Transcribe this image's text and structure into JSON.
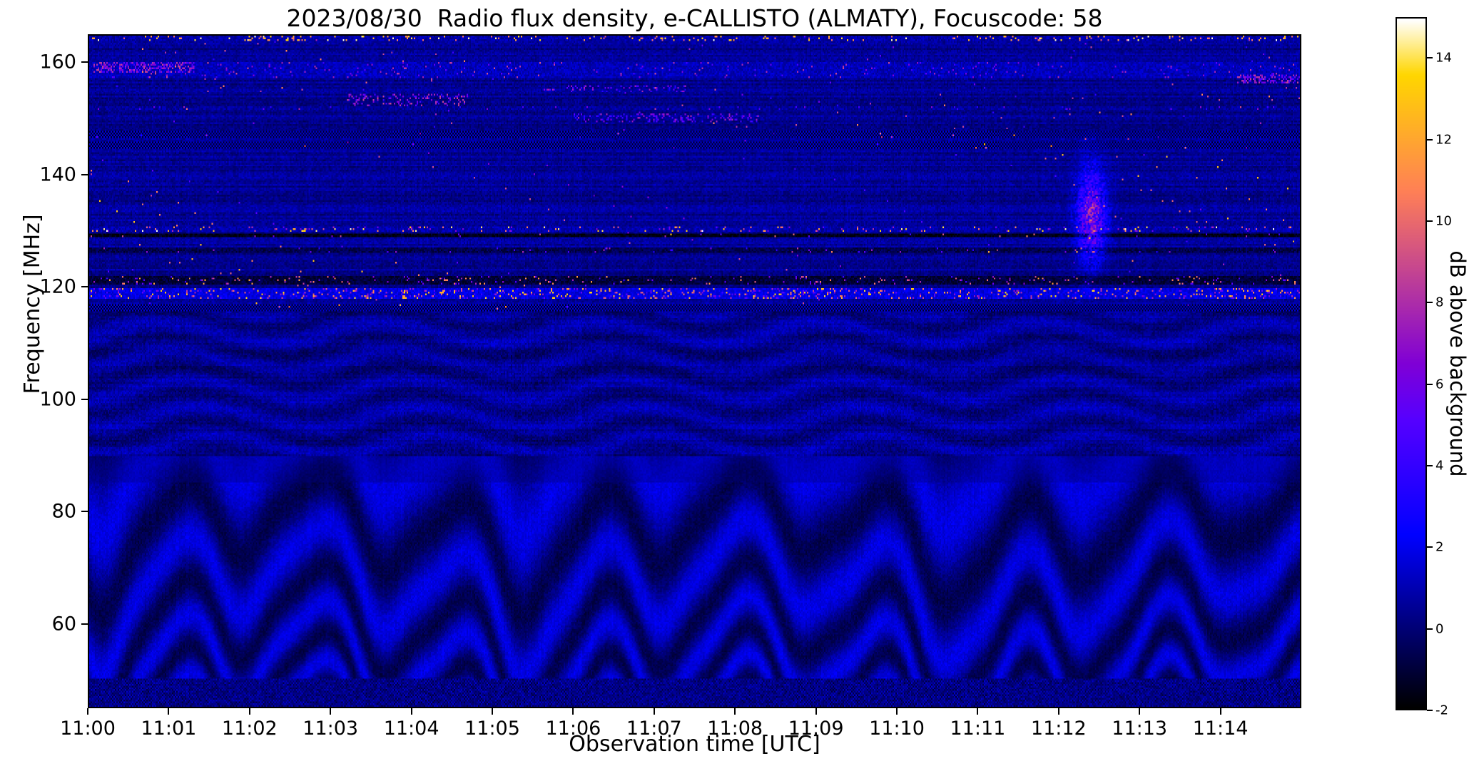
{
  "chart_data": {
    "type": "heatmap",
    "title": "2023/08/30  Radio flux density, e-CALLISTO (ALMATY), Focuscode: 58",
    "xlabel": "Observation time [UTC]",
    "ylabel": "Frequency [MHz]",
    "x_ticks": [
      "11:00",
      "11:01",
      "11:02",
      "11:03",
      "11:04",
      "11:05",
      "11:06",
      "11:07",
      "11:08",
      "11:09",
      "11:10",
      "11:11",
      "11:12",
      "11:13",
      "11:14"
    ],
    "x_span_minutes": 15,
    "y_ticks": [
      60,
      80,
      100,
      120,
      140,
      160
    ],
    "freq_range_mhz": [
      45,
      165
    ],
    "value_range_db": [
      -2,
      15
    ],
    "colorbar": {
      "label": "dB above background",
      "ticks": [
        -2,
        0,
        2,
        4,
        6,
        8,
        10,
        12,
        14
      ],
      "colormap": "gnuplot2"
    },
    "description": "Dynamic radio spectrum: dark-blue background noise; undulating ionospheric interference fringes below ~90 MHz; strong speckled RFI bands near 119 and 130 MHz; dotted calibration rows near 116 and 146 MHz; sporadic bright pink/yellow bursts in the 118-135 MHz and 148-165 MHz ranges; bright enhancement patch near 11:12.4 around 127-140 MHz.",
    "render": {
      "grid": {
        "cols": 850,
        "rows": 380,
        "seed": 77
      },
      "background": {
        "base": 0.45,
        "noise": 1.1,
        "row_gain": 0.9,
        "col_gain": 0.3
      },
      "fringe_region": {
        "f_max": 90,
        "spacing_base": 2.9,
        "spacing_slope": 0.045,
        "amplitude": 1.25
      },
      "checker_bands": [
        {
          "f": 116.4,
          "hw": 0.55
        },
        {
          "f": 145.4,
          "hw": 0.6
        },
        {
          "f": 147.3,
          "hw": 0.5
        }
      ],
      "rfi_bands": [
        {
          "f": 118.9,
          "hw": 0.9,
          "base": 1.8,
          "p": 0.13,
          "lo": 4,
          "hi": 14
        },
        {
          "f": 121.3,
          "hw": 0.8,
          "base": -1.0,
          "p": 0.05,
          "lo": 4,
          "hi": 12
        },
        {
          "f": 126.6,
          "hw": 0.5,
          "base": -0.7,
          "p": 0.02,
          "lo": 3,
          "hi": 8
        },
        {
          "f": 129.2,
          "hw": 0.35,
          "base": -1.6,
          "p": 0.01,
          "lo": 4,
          "hi": 10
        },
        {
          "f": 130.4,
          "hw": 0.6,
          "base": 0.9,
          "p": 0.07,
          "lo": 5,
          "hi": 15
        },
        {
          "f": 152.1,
          "hw": 0.4,
          "base": 0.6,
          "p": 0.02,
          "lo": 3,
          "hi": 7
        },
        {
          "f": 158.8,
          "hw": 1.4,
          "base": 1.1,
          "p": 0.025,
          "lo": 4,
          "hi": 9
        },
        {
          "f": 164.6,
          "hw": 0.6,
          "base": 0.8,
          "p": 0.08,
          "lo": 9,
          "hi": 15
        }
      ],
      "bright_segments": [
        {
          "t0": 0.05,
          "t1": 1.3,
          "fa": 158.3,
          "fb": 160.4,
          "p": 0.4,
          "lo": 4,
          "hi": 9
        },
        {
          "t0": 3.2,
          "t1": 4.7,
          "fa": 152.4,
          "fb": 154.6,
          "p": 0.22,
          "lo": 4,
          "hi": 9
        },
        {
          "t0": 6.0,
          "t1": 8.3,
          "fa": 149.6,
          "fb": 151.2,
          "p": 0.18,
          "lo": 3,
          "hi": 8
        },
        {
          "t0": 5.6,
          "t1": 7.4,
          "fa": 154.8,
          "fb": 156.2,
          "p": 0.15,
          "lo": 3,
          "hi": 8
        },
        {
          "t0": 14.2,
          "t1": 15.0,
          "fa": 156.6,
          "fb": 158.2,
          "p": 0.4,
          "lo": 4,
          "hi": 9
        }
      ],
      "bright_patch": {
        "t": 12.42,
        "f": 133,
        "sig_t": 0.12,
        "sig_f": 5.5,
        "amp": 7
      },
      "speckle": [
        {
          "fa": 116,
          "fb": 146,
          "p": 0.0025,
          "lo": 4,
          "hi": 13
        },
        {
          "fa": 146,
          "fb": 165,
          "p": 0.003,
          "lo": 3,
          "hi": 11
        }
      ]
    }
  }
}
